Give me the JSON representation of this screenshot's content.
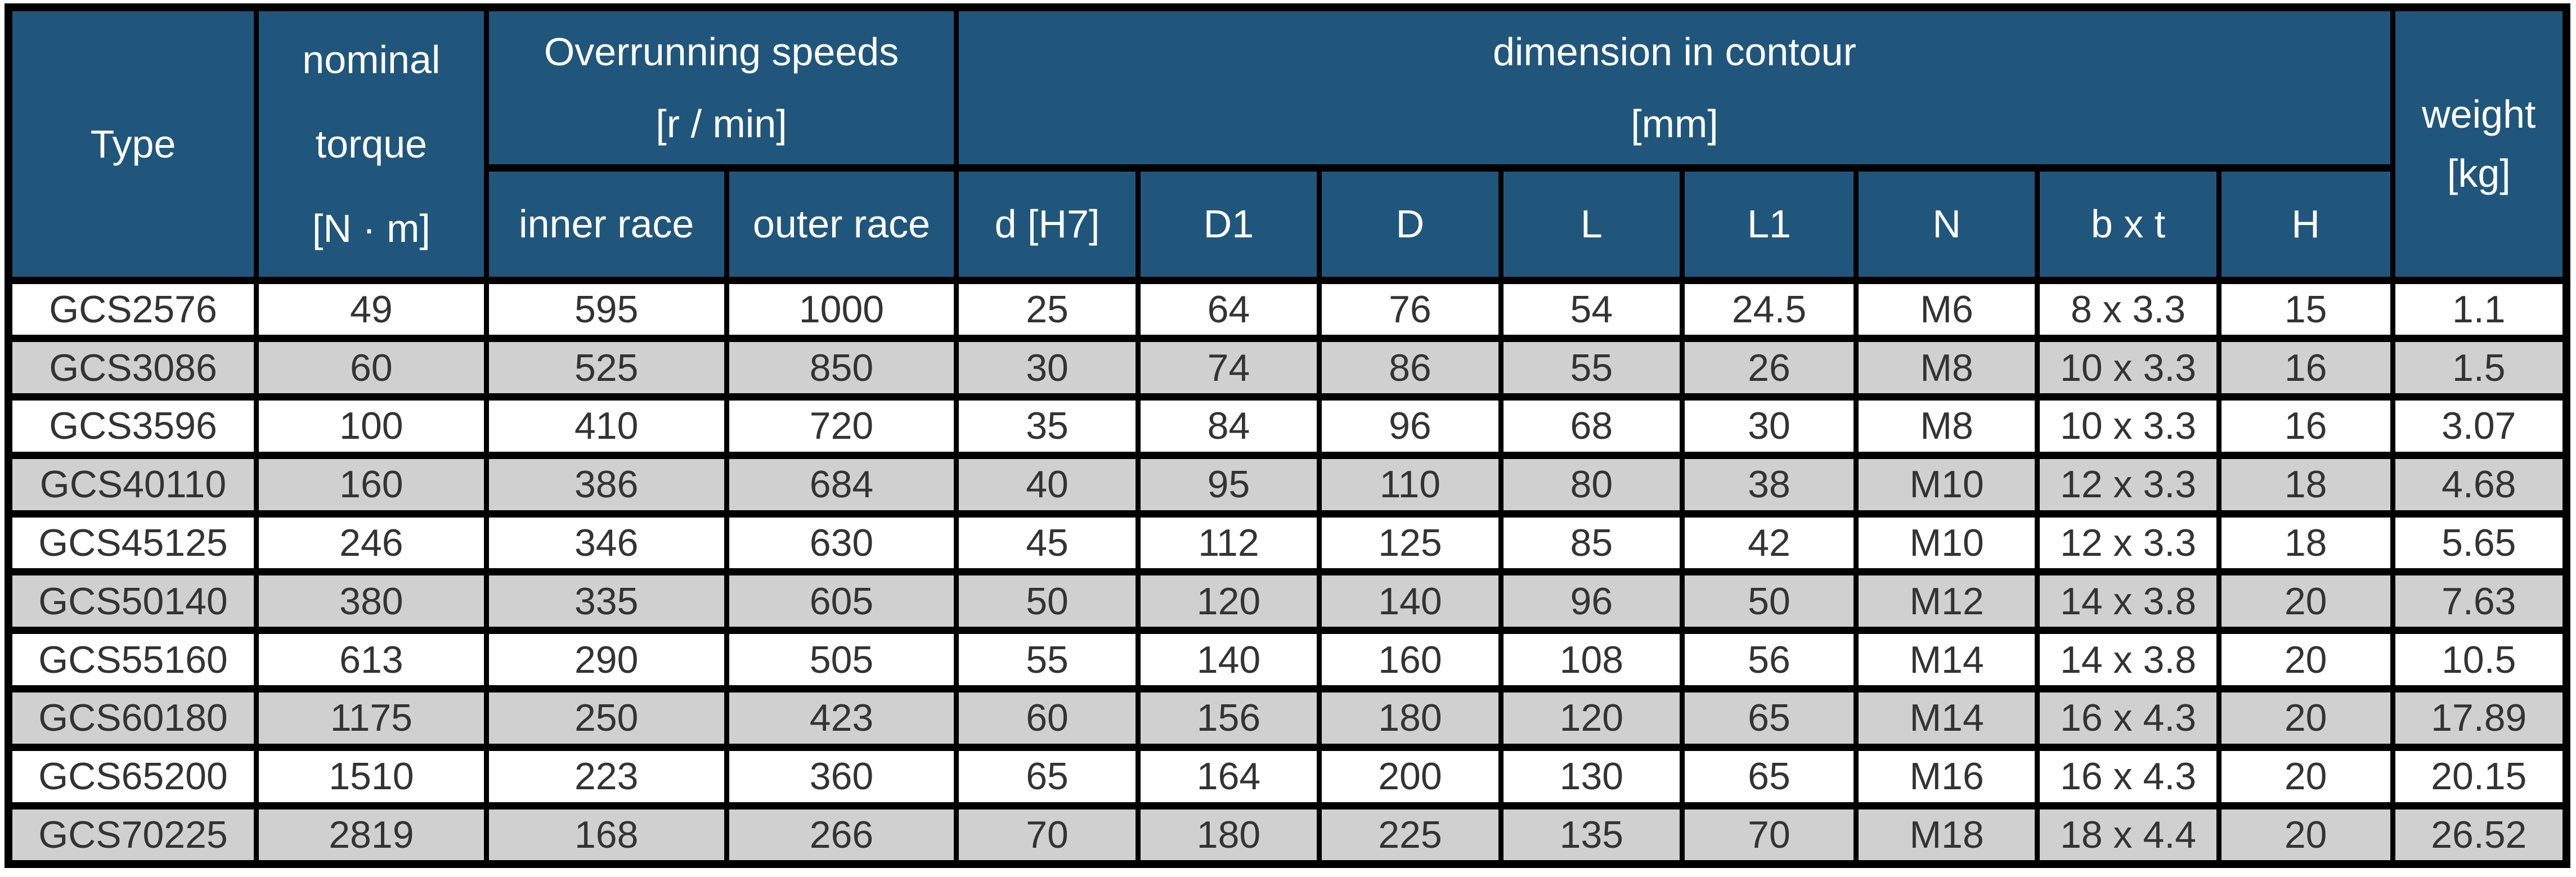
{
  "colors": {
    "header_bg": "#20567C",
    "header_text": "#FFFFFF",
    "row_bg": "#FFFFFF",
    "row_alt_bg": "#D0D0D0",
    "border": "#000000",
    "body_text": "#333333"
  },
  "table": {
    "header": {
      "type_label": "Type",
      "nominal_torque_lines": [
        "nominal",
        "torque",
        "[N · m]"
      ],
      "overrunning": {
        "title": "Overrunning speeds",
        "unit": "[r / min]",
        "columns": [
          "inner race",
          "outer race"
        ]
      },
      "dimension": {
        "title": "dimension in contour",
        "unit": "[mm]",
        "columns": [
          "d [H7]",
          "D1",
          "D",
          "L",
          "L1",
          "N",
          "b x t",
          "H"
        ]
      },
      "weight_lines": [
        "weight",
        "[kg]"
      ]
    },
    "rows": [
      {
        "type": "GCS2576",
        "values": [
          "49",
          "595",
          "1000",
          "25",
          "64",
          "76",
          "54",
          "24.5",
          "M6",
          "8 x 3.3",
          "15",
          "1.1"
        ]
      },
      {
        "type": "GCS3086",
        "values": [
          "60",
          "525",
          "850",
          "30",
          "74",
          "86",
          "55",
          "26",
          "M8",
          "10 x 3.3",
          "16",
          "1.5"
        ]
      },
      {
        "type": "GCS3596",
        "values": [
          "100",
          "410",
          "720",
          "35",
          "84",
          "96",
          "68",
          "30",
          "M8",
          "10 x 3.3",
          "16",
          "3.07"
        ]
      },
      {
        "type": "GCS40110",
        "values": [
          "160",
          "386",
          "684",
          "40",
          "95",
          "110",
          "80",
          "38",
          "M10",
          "12 x 3.3",
          "18",
          "4.68"
        ]
      },
      {
        "type": "GCS45125",
        "values": [
          "246",
          "346",
          "630",
          "45",
          "112",
          "125",
          "85",
          "42",
          "M10",
          "12 x 3.3",
          "18",
          "5.65"
        ]
      },
      {
        "type": "GCS50140",
        "values": [
          "380",
          "335",
          "605",
          "50",
          "120",
          "140",
          "96",
          "50",
          "M12",
          "14 x 3.8",
          "20",
          "7.63"
        ]
      },
      {
        "type": "GCS55160",
        "values": [
          "613",
          "290",
          "505",
          "55",
          "140",
          "160",
          "108",
          "56",
          "M14",
          "14 x 3.8",
          "20",
          "10.5"
        ]
      },
      {
        "type": "GCS60180",
        "values": [
          "1175",
          "250",
          "423",
          "60",
          "156",
          "180",
          "120",
          "65",
          "M14",
          "16 x 4.3",
          "20",
          "17.89"
        ]
      },
      {
        "type": "GCS65200",
        "values": [
          "1510",
          "223",
          "360",
          "65",
          "164",
          "200",
          "130",
          "65",
          "M16",
          "16 x 4.3",
          "20",
          "20.15"
        ]
      },
      {
        "type": "GCS70225",
        "values": [
          "2819",
          "168",
          "266",
          "70",
          "180",
          "225",
          "135",
          "70",
          "M18",
          "18 x 4.4",
          "20",
          "26.52"
        ]
      }
    ]
  }
}
